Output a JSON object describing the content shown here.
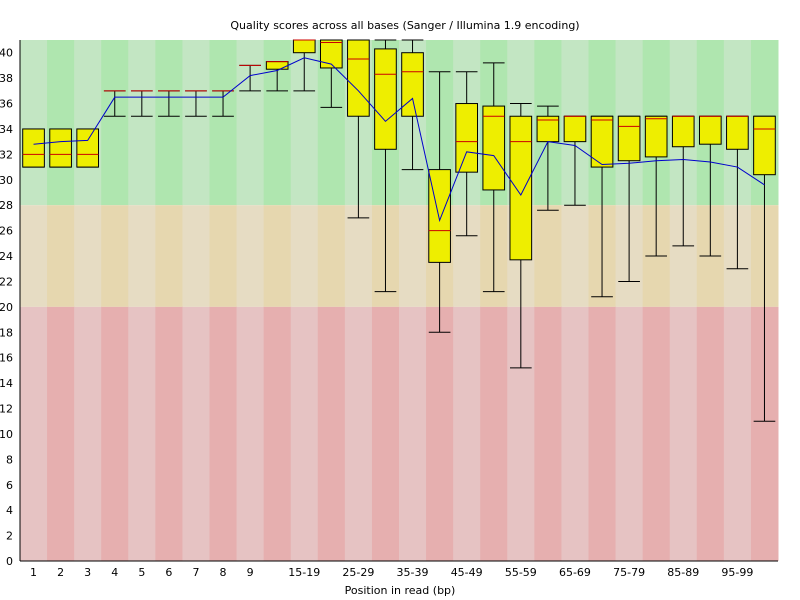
{
  "chart_data": {
    "type": "boxplot",
    "title": "Quality scores across all bases (Sanger / Illumina 1.9 encoding)",
    "xlabel": "Position in read (bp)",
    "ylabel": "",
    "ylim": [
      0,
      41
    ],
    "yticks": [
      0,
      2,
      4,
      6,
      8,
      10,
      12,
      14,
      16,
      18,
      20,
      22,
      24,
      26,
      28,
      30,
      32,
      34,
      36,
      38,
      40
    ],
    "zones": [
      {
        "from": 28,
        "to": 41,
        "color_light": "#c3e6c3",
        "color_dark": "#afe6af"
      },
      {
        "from": 20,
        "to": 28,
        "color_light": "#e6dcc3",
        "color_dark": "#e6d7af"
      },
      {
        "from": 0,
        "to": 20,
        "color_light": "#e6c3c3",
        "color_dark": "#e6afaf"
      }
    ],
    "colors": {
      "box": "#eeee00",
      "median": "#cc0000",
      "mean": "#0000cc",
      "whisker": "#000000"
    },
    "categories": [
      "1",
      "2",
      "3",
      "4",
      "5",
      "6",
      "7",
      "8",
      "9",
      "10-14",
      "15-19",
      "20-24",
      "25-29",
      "30-34",
      "35-39",
      "40-44",
      "45-49",
      "50-54",
      "55-59",
      "60-64",
      "65-69",
      "70-74",
      "75-79",
      "80-84",
      "85-89",
      "90-94",
      "95-99",
      "100-101"
    ],
    "xtick_labels": [
      "1",
      "2",
      "3",
      "4",
      "5",
      "6",
      "7",
      "8",
      "9",
      "",
      "15-19",
      "",
      "25-29",
      "",
      "35-39",
      "",
      "45-49",
      "",
      "55-59",
      "",
      "65-69",
      "",
      "75-79",
      "",
      "85-89",
      "",
      "95-99",
      ""
    ],
    "boxes": [
      {
        "low": 31,
        "q1": 31,
        "median": 32,
        "q3": 34,
        "high": 34
      },
      {
        "low": 31,
        "q1": 31,
        "median": 32,
        "q3": 34,
        "high": 34
      },
      {
        "low": 31,
        "q1": 31,
        "median": 32,
        "q3": 34,
        "high": 34
      },
      {
        "low": 35,
        "q1": 37,
        "median": 37,
        "q3": 37,
        "high": 37
      },
      {
        "low": 35,
        "q1": 37,
        "median": 37,
        "q3": 37,
        "high": 37
      },
      {
        "low": 35,
        "q1": 37,
        "median": 37,
        "q3": 37,
        "high": 37
      },
      {
        "low": 35,
        "q1": 37,
        "median": 37,
        "q3": 37,
        "high": 37
      },
      {
        "low": 35,
        "q1": 37,
        "median": 37,
        "q3": 37,
        "high": 37
      },
      {
        "low": 37,
        "q1": 39,
        "median": 39,
        "q3": 39,
        "high": 39
      },
      {
        "low": 37,
        "q1": 38.7,
        "median": 39.3,
        "q3": 39.3,
        "high": 39.3
      },
      {
        "low": 37,
        "q1": 40,
        "median": 41,
        "q3": 41,
        "high": 41
      },
      {
        "low": 35.7,
        "q1": 38.8,
        "median": 40.8,
        "q3": 41,
        "high": 41
      },
      {
        "low": 27,
        "q1": 35,
        "median": 39.5,
        "q3": 41,
        "high": 41
      },
      {
        "low": 21.2,
        "q1": 32.4,
        "median": 38.3,
        "q3": 40.3,
        "high": 41
      },
      {
        "low": 30.8,
        "q1": 35,
        "median": 38.5,
        "q3": 40,
        "high": 41
      },
      {
        "low": 18,
        "q1": 23.5,
        "median": 26,
        "q3": 30.8,
        "high": 38.5
      },
      {
        "low": 25.6,
        "q1": 30.6,
        "median": 33,
        "q3": 36,
        "high": 38.5
      },
      {
        "low": 21.2,
        "q1": 29.2,
        "median": 35,
        "q3": 35.8,
        "high": 39.2
      },
      {
        "low": 15.2,
        "q1": 23.7,
        "median": 33,
        "q3": 35,
        "high": 36
      },
      {
        "low": 27.6,
        "q1": 33,
        "median": 34.7,
        "q3": 35,
        "high": 35.8
      },
      {
        "low": 28,
        "q1": 33,
        "median": 35,
        "q3": 35,
        "high": 35
      },
      {
        "low": 20.8,
        "q1": 31,
        "median": 34.7,
        "q3": 35,
        "high": 35
      },
      {
        "low": 22,
        "q1": 31.5,
        "median": 34.2,
        "q3": 35,
        "high": 35
      },
      {
        "low": 24,
        "q1": 31.8,
        "median": 34.8,
        "q3": 35,
        "high": 35
      },
      {
        "low": 24.8,
        "q1": 32.6,
        "median": 35,
        "q3": 35,
        "high": 35
      },
      {
        "low": 24,
        "q1": 32.8,
        "median": 35,
        "q3": 35,
        "high": 35
      },
      {
        "low": 23,
        "q1": 32.4,
        "median": 35,
        "q3": 35,
        "high": 35
      },
      {
        "low": 11,
        "q1": 30.4,
        "median": 34,
        "q3": 35,
        "high": 35
      }
    ],
    "mean": [
      32.8,
      33.0,
      33.1,
      36.5,
      36.5,
      36.5,
      36.5,
      36.5,
      38.2,
      38.6,
      39.6,
      39.1,
      37.0,
      34.6,
      36.4,
      26.8,
      32.2,
      31.9,
      28.8,
      33.0,
      32.7,
      31.2,
      31.3,
      31.5,
      31.6,
      31.4,
      31.0,
      29.6
    ]
  }
}
